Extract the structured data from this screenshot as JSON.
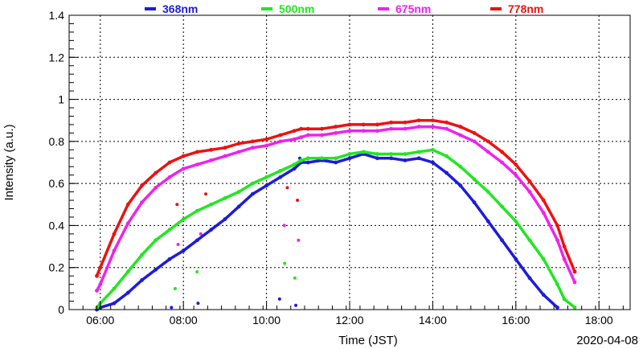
{
  "chart_data": {
    "type": "scatter",
    "title": "",
    "xlabel": "Time (JST)",
    "ylabel": "Intensity (a.u.)",
    "date_label": "2020-04-08",
    "xlim": [
      "05:15",
      "18:45"
    ],
    "ylim": [
      0,
      1.4
    ],
    "x_ticks": [
      "06:00",
      "08:00",
      "10:00",
      "12:00",
      "14:00",
      "16:00",
      "18:00"
    ],
    "y_ticks": [
      "0",
      "0.2",
      "0.4",
      "0.6",
      "0.8",
      "1",
      "1.2",
      "1.4"
    ],
    "grid": true,
    "legend_position": "top",
    "series": [
      {
        "name": "368nm",
        "color": "#1c1cdc",
        "points": [
          [
            "05:55",
            0.0
          ],
          [
            "06:00",
            0.01
          ],
          [
            "06:20",
            0.03
          ],
          [
            "06:40",
            0.08
          ],
          [
            "07:00",
            0.14
          ],
          [
            "07:20",
            0.19
          ],
          [
            "07:40",
            0.24
          ],
          [
            "08:00",
            0.28
          ],
          [
            "08:20",
            0.33
          ],
          [
            "08:40",
            0.38
          ],
          [
            "09:00",
            0.43
          ],
          [
            "09:20",
            0.49
          ],
          [
            "09:40",
            0.55
          ],
          [
            "10:00",
            0.59
          ],
          [
            "10:20",
            0.63
          ],
          [
            "10:40",
            0.67
          ],
          [
            "10:50",
            0.7
          ],
          [
            "11:00",
            0.7
          ],
          [
            "11:20",
            0.71
          ],
          [
            "11:40",
            0.7
          ],
          [
            "12:00",
            0.72
          ],
          [
            "12:20",
            0.74
          ],
          [
            "12:40",
            0.72
          ],
          [
            "13:00",
            0.72
          ],
          [
            "13:20",
            0.71
          ],
          [
            "13:40",
            0.72
          ],
          [
            "14:00",
            0.7
          ],
          [
            "14:20",
            0.65
          ],
          [
            "14:40",
            0.59
          ],
          [
            "15:00",
            0.51
          ],
          [
            "15:20",
            0.42
          ],
          [
            "15:40",
            0.33
          ],
          [
            "16:00",
            0.24
          ],
          [
            "16:20",
            0.15
          ],
          [
            "16:40",
            0.07
          ],
          [
            "17:00",
            0.01
          ]
        ]
      },
      {
        "name": "500nm",
        "color": "#22e622",
        "points": [
          [
            "05:55",
            0.01
          ],
          [
            "06:00",
            0.03
          ],
          [
            "06:20",
            0.1
          ],
          [
            "06:40",
            0.18
          ],
          [
            "07:00",
            0.26
          ],
          [
            "07:20",
            0.33
          ],
          [
            "07:40",
            0.38
          ],
          [
            "08:00",
            0.43
          ],
          [
            "08:20",
            0.47
          ],
          [
            "08:40",
            0.5
          ],
          [
            "09:00",
            0.53
          ],
          [
            "09:20",
            0.56
          ],
          [
            "09:40",
            0.6
          ],
          [
            "10:00",
            0.63
          ],
          [
            "10:20",
            0.66
          ],
          [
            "10:40",
            0.69
          ],
          [
            "10:50",
            0.71
          ],
          [
            "11:00",
            0.72
          ],
          [
            "11:20",
            0.72
          ],
          [
            "11:40",
            0.72
          ],
          [
            "12:00",
            0.74
          ],
          [
            "12:20",
            0.75
          ],
          [
            "12:40",
            0.74
          ],
          [
            "13:00",
            0.74
          ],
          [
            "13:20",
            0.74
          ],
          [
            "13:40",
            0.75
          ],
          [
            "14:00",
            0.76
          ],
          [
            "14:20",
            0.73
          ],
          [
            "14:40",
            0.68
          ],
          [
            "15:00",
            0.62
          ],
          [
            "15:20",
            0.56
          ],
          [
            "15:40",
            0.49
          ],
          [
            "16:00",
            0.42
          ],
          [
            "16:20",
            0.33
          ],
          [
            "16:40",
            0.24
          ],
          [
            "17:00",
            0.12
          ],
          [
            "17:10",
            0.05
          ],
          [
            "17:25",
            0.01
          ]
        ]
      },
      {
        "name": "675nm",
        "color": "#ee22ee",
        "points": [
          [
            "05:55",
            0.09
          ],
          [
            "06:00",
            0.12
          ],
          [
            "06:20",
            0.28
          ],
          [
            "06:40",
            0.41
          ],
          [
            "07:00",
            0.51
          ],
          [
            "07:20",
            0.58
          ],
          [
            "07:40",
            0.63
          ],
          [
            "08:00",
            0.67
          ],
          [
            "08:20",
            0.69
          ],
          [
            "08:40",
            0.71
          ],
          [
            "09:00",
            0.73
          ],
          [
            "09:20",
            0.75
          ],
          [
            "09:40",
            0.77
          ],
          [
            "10:00",
            0.78
          ],
          [
            "10:20",
            0.8
          ],
          [
            "10:40",
            0.81
          ],
          [
            "10:50",
            0.82
          ],
          [
            "11:00",
            0.83
          ],
          [
            "11:20",
            0.83
          ],
          [
            "11:40",
            0.84
          ],
          [
            "12:00",
            0.85
          ],
          [
            "12:20",
            0.85
          ],
          [
            "12:40",
            0.85
          ],
          [
            "13:00",
            0.86
          ],
          [
            "13:20",
            0.86
          ],
          [
            "13:40",
            0.87
          ],
          [
            "14:00",
            0.87
          ],
          [
            "14:20",
            0.86
          ],
          [
            "14:40",
            0.83
          ],
          [
            "15:00",
            0.8
          ],
          [
            "15:20",
            0.75
          ],
          [
            "15:40",
            0.7
          ],
          [
            "16:00",
            0.64
          ],
          [
            "16:20",
            0.56
          ],
          [
            "16:40",
            0.46
          ],
          [
            "17:00",
            0.33
          ],
          [
            "17:10",
            0.24
          ],
          [
            "17:25",
            0.13
          ]
        ]
      },
      {
        "name": "778nm",
        "color": "#ee1111",
        "points": [
          [
            "05:55",
            0.16
          ],
          [
            "06:00",
            0.2
          ],
          [
            "06:20",
            0.36
          ],
          [
            "06:40",
            0.5
          ],
          [
            "07:00",
            0.59
          ],
          [
            "07:20",
            0.65
          ],
          [
            "07:40",
            0.7
          ],
          [
            "08:00",
            0.73
          ],
          [
            "08:20",
            0.75
          ],
          [
            "08:40",
            0.76
          ],
          [
            "09:00",
            0.77
          ],
          [
            "09:20",
            0.79
          ],
          [
            "09:40",
            0.8
          ],
          [
            "10:00",
            0.81
          ],
          [
            "10:20",
            0.83
          ],
          [
            "10:40",
            0.85
          ],
          [
            "10:50",
            0.86
          ],
          [
            "11:00",
            0.86
          ],
          [
            "11:20",
            0.86
          ],
          [
            "11:40",
            0.87
          ],
          [
            "12:00",
            0.88
          ],
          [
            "12:20",
            0.88
          ],
          [
            "12:40",
            0.88
          ],
          [
            "13:00",
            0.89
          ],
          [
            "13:20",
            0.89
          ],
          [
            "13:40",
            0.9
          ],
          [
            "14:00",
            0.9
          ],
          [
            "14:20",
            0.89
          ],
          [
            "14:40",
            0.87
          ],
          [
            "15:00",
            0.84
          ],
          [
            "15:20",
            0.8
          ],
          [
            "15:40",
            0.75
          ],
          [
            "16:00",
            0.69
          ],
          [
            "16:20",
            0.61
          ],
          [
            "16:40",
            0.52
          ],
          [
            "17:00",
            0.4
          ],
          [
            "17:10",
            0.3
          ],
          [
            "17:25",
            0.18
          ]
        ]
      }
    ],
    "dropouts": [
      {
        "time": "07:45",
        "value": 0.01
      },
      {
        "time": "07:48",
        "value": 0.1
      },
      {
        "time": "07:50",
        "value": 0.31
      },
      {
        "time": "07:52",
        "value": 0.5
      },
      {
        "time": "08:20",
        "value": 0.03
      },
      {
        "time": "08:22",
        "value": 0.18
      },
      {
        "time": "08:25",
        "value": 0.36
      },
      {
        "time": "08:30",
        "value": 0.55
      },
      {
        "time": "10:20",
        "value": 0.05
      },
      {
        "time": "10:25",
        "value": 0.22
      },
      {
        "time": "10:28",
        "value": 0.4
      },
      {
        "time": "10:30",
        "value": 0.58
      },
      {
        "time": "10:40",
        "value": 0.02
      },
      {
        "time": "10:42",
        "value": 0.15
      },
      {
        "time": "10:45",
        "value": 0.33
      },
      {
        "time": "10:47",
        "value": 0.52
      },
      {
        "time": "10:48",
        "value": 0.72
      }
    ]
  }
}
